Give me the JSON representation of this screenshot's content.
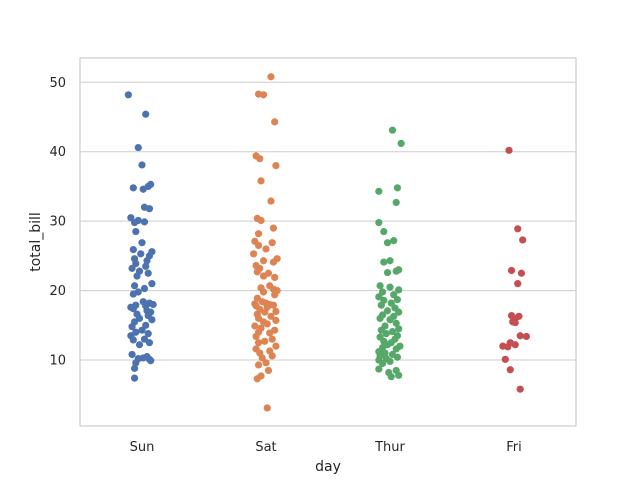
{
  "chart_data": {
    "type": "scatter",
    "subtype": "stripplot",
    "title": "",
    "xlabel": "day",
    "ylabel": "total_bill",
    "categories": [
      "Sun",
      "Sat",
      "Thur",
      "Fri"
    ],
    "ylim": [
      0.5,
      53.5
    ],
    "yticks": [
      10,
      20,
      30,
      40,
      50
    ],
    "grid": "horizontal",
    "colors": {
      "Sun": "#4c72b0",
      "Sat": "#dd8452",
      "Thur": "#55a868",
      "Fri": "#c44e52",
      "grid": "#cccccc",
      "text": "#262626"
    },
    "series": [
      {
        "name": "Sun",
        "values": [
          48.2,
          45.4,
          40.6,
          38.1,
          35.3,
          35.0,
          34.8,
          34.6,
          32.0,
          31.8,
          30.5,
          30.1,
          29.9,
          29.8,
          28.5,
          26.9,
          25.9,
          25.6,
          25.3,
          25.0,
          24.6,
          24.3,
          23.9,
          23.5,
          23.2,
          22.8,
          22.5,
          22.1,
          21.0,
          20.7,
          20.3,
          19.8,
          19.5,
          18.4,
          18.2,
          18.0,
          17.9,
          17.8,
          17.6,
          17.4,
          17.1,
          16.9,
          16.6,
          16.4,
          16.0,
          15.8,
          15.5,
          15.0,
          14.8,
          14.3,
          14.0,
          13.8,
          13.5,
          13.0,
          12.9,
          12.5,
          12.2,
          10.8,
          10.5,
          10.3,
          10.2,
          10.1,
          9.9,
          9.6,
          8.8,
          7.4
        ],
        "offsets": [
          -0.11,
          0.03,
          -0.03,
          0.0,
          0.07,
          0.05,
          -0.07,
          0.01,
          0.02,
          0.06,
          -0.09,
          -0.03,
          0.02,
          -0.06,
          -0.05,
          0.0,
          -0.07,
          0.08,
          -0.01,
          0.06,
          -0.06,
          0.04,
          -0.05,
          0.03,
          -0.08,
          -0.02,
          0.05,
          -0.04,
          0.08,
          -0.06,
          0.02,
          -0.03,
          -0.07,
          0.01,
          0.06,
          0.09,
          -0.05,
          0.03,
          -0.09,
          -0.07,
          0.04,
          0.07,
          -0.04,
          0.05,
          -0.02,
          0.08,
          -0.06,
          0.03,
          -0.08,
          0.0,
          -0.05,
          0.05,
          -0.09,
          0.02,
          -0.07,
          0.06,
          -0.02,
          -0.08,
          0.04,
          0.01,
          -0.03,
          0.06,
          0.07,
          -0.05,
          -0.06,
          -0.06
        ]
      },
      {
        "name": "Sat",
        "values": [
          50.8,
          48.3,
          48.2,
          44.3,
          39.4,
          39.0,
          38.0,
          35.8,
          32.9,
          30.4,
          30.1,
          29.0,
          28.2,
          27.1,
          26.9,
          26.5,
          26.0,
          25.3,
          24.6,
          24.3,
          24.1,
          23.6,
          23.2,
          22.7,
          22.5,
          22.1,
          21.9,
          20.7,
          20.4,
          20.2,
          20.0,
          19.8,
          19.4,
          18.9,
          18.4,
          18.2,
          18.1,
          18.0,
          17.9,
          17.8,
          17.6,
          17.3,
          17.0,
          16.9,
          16.6,
          16.3,
          16.0,
          15.7,
          15.5,
          15.2,
          14.9,
          14.6,
          14.3,
          14.0,
          13.9,
          13.4,
          13.0,
          12.7,
          12.5,
          12.0,
          11.6,
          11.3,
          11.0,
          10.6,
          10.3,
          9.6,
          9.3,
          8.5,
          7.7,
          7.3,
          3.1
        ],
        "offsets": [
          0.04,
          -0.06,
          -0.02,
          0.07,
          -0.08,
          -0.05,
          0.08,
          -0.04,
          0.04,
          -0.07,
          -0.04,
          0.06,
          -0.06,
          -0.09,
          0.05,
          -0.06,
          0.0,
          -0.1,
          0.09,
          -0.02,
          0.06,
          -0.08,
          -0.05,
          -0.07,
          0.02,
          -0.02,
          0.07,
          0.03,
          -0.04,
          0.06,
          0.09,
          -0.02,
          0.07,
          -0.07,
          -0.03,
          0.0,
          -0.09,
          0.03,
          0.06,
          -0.08,
          0.01,
          -0.05,
          0.08,
          -0.01,
          -0.07,
          0.04,
          -0.06,
          0.08,
          -0.02,
          0.01,
          -0.09,
          -0.04,
          0.07,
          -0.06,
          0.03,
          -0.08,
          0.05,
          -0.01,
          -0.06,
          0.08,
          -0.08,
          0.03,
          -0.05,
          0.05,
          -0.03,
          0.0,
          -0.06,
          0.02,
          -0.04,
          -0.07,
          0.01
        ]
      },
      {
        "name": "Thur",
        "values": [
          43.1,
          41.2,
          34.8,
          34.3,
          32.7,
          29.8,
          28.5,
          27.2,
          26.9,
          24.1,
          24.3,
          23.0,
          22.8,
          22.6,
          20.7,
          20.5,
          20.1,
          19.8,
          19.4,
          19.1,
          18.7,
          18.6,
          18.2,
          17.9,
          17.5,
          17.1,
          16.9,
          16.5,
          16.3,
          16.0,
          15.8,
          15.3,
          14.9,
          14.5,
          14.3,
          14.1,
          13.8,
          13.5,
          13.3,
          13.0,
          12.7,
          12.5,
          12.2,
          12.0,
          11.8,
          11.6,
          11.2,
          11.0,
          10.8,
          10.6,
          10.4,
          10.2,
          10.0,
          9.8,
          9.5,
          8.7,
          8.5,
          8.2,
          7.8,
          7.6
        ],
        "offsets": [
          0.02,
          0.09,
          0.06,
          -0.09,
          0.05,
          -0.09,
          -0.05,
          0.03,
          -0.02,
          -0.05,
          0.0,
          0.07,
          0.05,
          -0.02,
          -0.08,
          0.0,
          0.07,
          -0.06,
          0.03,
          -0.09,
          0.06,
          -0.05,
          0.01,
          -0.07,
          0.04,
          -0.02,
          0.07,
          -0.06,
          0.03,
          -0.08,
          0.0,
          0.05,
          -0.04,
          0.07,
          -0.07,
          0.02,
          -0.03,
          0.06,
          -0.08,
          0.04,
          -0.05,
          0.01,
          -0.02,
          0.08,
          -0.06,
          0.05,
          -0.09,
          -0.04,
          0.02,
          -0.08,
          0.06,
          -0.03,
          -0.09,
          0.0,
          -0.06,
          -0.09,
          0.05,
          -0.01,
          0.07,
          0.01
        ]
      },
      {
        "name": "Fri",
        "values": [
          40.2,
          28.9,
          27.3,
          22.9,
          22.5,
          21.0,
          16.4,
          16.3,
          16.0,
          15.5,
          15.4,
          13.5,
          13.4,
          12.5,
          12.2,
          12.0,
          11.9,
          10.1,
          8.6,
          5.8
        ],
        "offsets": [
          -0.04,
          0.03,
          0.07,
          -0.02,
          0.06,
          0.03,
          -0.02,
          0.04,
          0.01,
          -0.01,
          0.01,
          0.05,
          0.1,
          -0.03,
          0.01,
          -0.09,
          -0.05,
          -0.07,
          -0.03,
          0.05
        ]
      }
    ]
  }
}
